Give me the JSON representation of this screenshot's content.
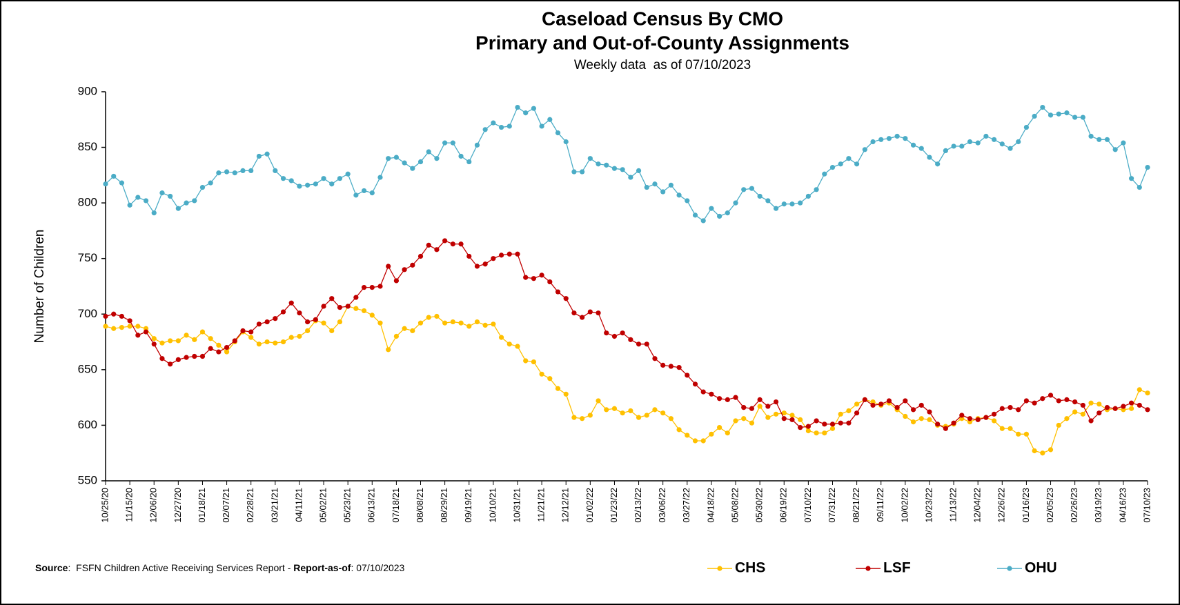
{
  "chart_data": {
    "type": "line",
    "title": "Caseload Census By CMO",
    "subtitle": "Primary and Out-of-County Assignments",
    "note": "Weekly data  as of 07/10/2023",
    "y_label": "Number of Children",
    "source": [
      "Source",
      ":  FSFN Children Active Receiving Services Report - ",
      "Report-as-of",
      ": 07/10/2023"
    ],
    "ylim": [
      550,
      900
    ],
    "yticks": [
      550,
      600,
      650,
      700,
      750,
      800,
      850,
      900
    ],
    "grid": false,
    "legend": "bottom",
    "categories": [
      "10/25/20",
      null,
      null,
      "11/15/20",
      null,
      null,
      "12/06/20",
      null,
      null,
      "12/27/20",
      null,
      null,
      "01/18/21",
      null,
      null,
      "02/07/21",
      null,
      null,
      "02/28/21",
      null,
      null,
      "03/21/21",
      null,
      null,
      "04/11/21",
      null,
      null,
      "05/02/21",
      null,
      null,
      "05/23/21",
      null,
      null,
      "06/13/21",
      null,
      null,
      "07/18/21",
      null,
      null,
      "08/08/21",
      null,
      null,
      "08/29/21",
      null,
      null,
      "09/19/21",
      null,
      null,
      "10/10/21",
      null,
      null,
      "10/31/21",
      null,
      null,
      "11/21/21",
      null,
      null,
      "12/12/21",
      null,
      null,
      "01/02/22",
      null,
      null,
      "01/23/22",
      null,
      null,
      "02/13/22",
      null,
      null,
      "03/06/22",
      null,
      null,
      "03/27/22",
      null,
      null,
      "04/18/22",
      null,
      null,
      "05/08/22",
      null,
      null,
      "05/30/22",
      null,
      null,
      "06/19/22",
      null,
      null,
      "07/10/22",
      null,
      null,
      "07/31/22",
      null,
      null,
      "08/21/22",
      null,
      null,
      "09/11/22",
      null,
      null,
      "10/02/22",
      null,
      null,
      "10/23/22",
      null,
      null,
      "11/13/22",
      null,
      null,
      "12/04/22",
      null,
      null,
      "12/26/22",
      null,
      null,
      "01/16/23",
      null,
      null,
      "02/05/23",
      null,
      null,
      "02/26/23",
      null,
      null,
      "03/19/23",
      null,
      null,
      "04/16/23",
      null,
      null,
      "07/10/23"
    ],
    "series": [
      {
        "name": "CHS",
        "color": "#FFC000",
        "values": [
          689,
          687,
          688,
          689,
          689,
          687,
          678,
          674,
          676,
          676,
          681,
          677,
          684,
          678,
          672,
          666,
          675,
          684,
          679,
          673,
          675,
          674,
          675,
          679,
          680,
          685,
          694,
          692,
          685,
          693,
          707,
          705,
          703,
          699,
          692,
          668,
          680,
          687,
          685,
          692,
          697,
          698,
          692,
          693,
          692,
          689,
          693,
          690,
          691,
          679,
          673,
          671,
          658,
          657,
          646,
          642,
          633,
          628,
          607,
          606,
          609,
          622,
          614,
          615,
          611,
          613,
          607,
          609,
          614,
          611,
          606,
          596,
          591,
          586,
          586,
          592,
          598,
          593,
          604,
          606,
          602,
          617,
          607,
          610,
          611,
          609,
          605,
          595,
          593,
          593,
          597,
          610,
          613,
          619,
          623,
          621,
          618,
          620,
          614,
          608,
          603,
          606,
          605,
          600,
          599,
          601,
          606,
          603,
          606,
          607,
          604,
          597,
          597,
          592,
          592,
          577,
          575,
          578,
          600,
          606,
          612,
          610,
          620,
          619,
          614,
          615,
          614,
          615,
          632,
          629
        ]
      },
      {
        "name": "LSF",
        "color": "#C00000",
        "values": [
          698,
          700,
          698,
          694,
          681,
          684,
          673,
          660,
          655,
          659,
          661,
          662,
          662,
          669,
          666,
          670,
          676,
          685,
          684,
          691,
          693,
          696,
          702,
          710,
          701,
          693,
          695,
          707,
          714,
          706,
          707,
          715,
          724,
          724,
          725,
          743,
          730,
          740,
          744,
          752,
          762,
          758,
          766,
          763,
          763,
          752,
          743,
          745,
          750,
          753,
          754,
          754,
          733,
          732,
          735,
          729,
          720,
          714,
          701,
          697,
          702,
          701,
          683,
          680,
          683,
          677,
          673,
          673,
          660,
          654,
          653,
          652,
          645,
          637,
          630,
          628,
          624,
          623,
          625,
          616,
          615,
          623,
          617,
          621,
          606,
          605,
          598,
          599,
          604,
          601,
          601,
          602,
          602,
          611,
          623,
          618,
          619,
          622,
          616,
          622,
          614,
          618,
          612,
          601,
          597,
          602,
          609,
          606,
          605,
          607,
          610,
          615,
          616,
          614,
          622,
          620,
          624,
          627,
          622,
          623,
          621,
          618,
          604,
          611,
          616,
          615,
          617,
          620,
          618,
          614
        ]
      },
      {
        "name": "OHU",
        "color": "#4BACC6",
        "values": [
          817,
          824,
          818,
          798,
          805,
          802,
          791,
          809,
          806,
          795,
          800,
          802,
          814,
          818,
          827,
          828,
          827,
          829,
          829,
          842,
          844,
          829,
          822,
          820,
          815,
          816,
          817,
          822,
          817,
          822,
          826,
          807,
          811,
          809,
          823,
          840,
          841,
          836,
          831,
          837,
          846,
          840,
          854,
          854,
          842,
          837,
          852,
          866,
          872,
          868,
          869,
          886,
          881,
          885,
          869,
          875,
          863,
          855,
          828,
          828,
          840,
          835,
          834,
          831,
          830,
          823,
          829,
          814,
          817,
          810,
          816,
          807,
          802,
          789,
          784,
          795,
          788,
          791,
          800,
          812,
          813,
          806,
          802,
          795,
          799,
          799,
          800,
          806,
          812,
          826,
          832,
          835,
          840,
          835,
          848,
          855,
          857,
          858,
          860,
          858,
          852,
          849,
          841,
          835,
          847,
          851,
          851,
          855,
          854,
          860,
          857,
          853,
          849,
          855,
          868,
          878,
          886,
          879,
          880,
          881,
          877,
          877,
          860,
          857,
          857,
          848,
          854,
          822,
          814,
          832
        ]
      }
    ]
  }
}
